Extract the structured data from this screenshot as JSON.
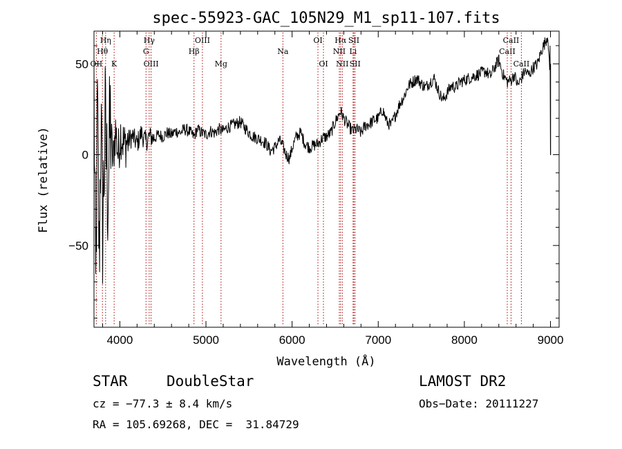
{
  "chart_data": {
    "type": "line",
    "title": "spec-55923-GAC_105N29_M1_sp11-107.fits",
    "xlabel": "Wavelength (Å)",
    "ylabel": "Flux (relative)",
    "xlim": [
      3700,
      9100
    ],
    "ylim": [
      -95,
      68
    ],
    "x_ticks": [
      4000,
      5000,
      6000,
      7000,
      8000,
      9000
    ],
    "y_ticks": [
      50,
      0,
      -50
    ],
    "x_tick_labels": [
      "4000",
      "5000",
      "6000",
      "7000",
      "8000",
      "9000"
    ],
    "y_tick_labels": [
      "50",
      "0",
      "−50"
    ],
    "grid": false,
    "line_color": "#000000",
    "marker_color": "#aa0000",
    "spectrum": {
      "x": [
        3700,
        3720,
        3740,
        3760,
        3780,
        3800,
        3830,
        3860,
        3890,
        3920,
        3950,
        3980,
        4010,
        4050,
        4100,
        4150,
        4200,
        4250,
        4300,
        4340,
        4400,
        4450,
        4500,
        4550,
        4600,
        4650,
        4700,
        4750,
        4800,
        4861,
        4900,
        4950,
        5000,
        5050,
        5100,
        5150,
        5200,
        5250,
        5300,
        5350,
        5400,
        5450,
        5500,
        5550,
        5600,
        5650,
        5700,
        5750,
        5800,
        5850,
        5890,
        5930,
        5970,
        6010,
        6050,
        6100,
        6150,
        6200,
        6250,
        6300,
        6350,
        6400,
        6450,
        6500,
        6563,
        6600,
        6650,
        6700,
        6750,
        6800,
        6850,
        6900,
        6950,
        7000,
        7050,
        7100,
        7150,
        7200,
        7250,
        7300,
        7350,
        7400,
        7450,
        7500,
        7550,
        7600,
        7650,
        7700,
        7750,
        7800,
        7850,
        7900,
        7950,
        8000,
        8050,
        8100,
        8150,
        8200,
        8250,
        8300,
        8350,
        8400,
        8450,
        8500,
        8542,
        8580,
        8620,
        8662,
        8700,
        8750,
        8800,
        8850,
        8900,
        8940,
        8970,
        8990,
        9000
      ],
      "y": [
        40,
        -80,
        25,
        -60,
        20,
        -40,
        15,
        -20,
        18,
        -5,
        14,
        0,
        12,
        5,
        8,
        10,
        6,
        12,
        7,
        10,
        9,
        11,
        10,
        12,
        11,
        13,
        12,
        14,
        13,
        10,
        14,
        12,
        11,
        13,
        12,
        14,
        13,
        15,
        16,
        17,
        18,
        15,
        12,
        10,
        9,
        8,
        6,
        2,
        4,
        8,
        5,
        0,
        -2,
        5,
        10,
        12,
        6,
        4,
        5,
        6,
        9,
        10,
        12,
        18,
        24,
        20,
        16,
        13,
        14,
        12,
        16,
        17,
        19,
        20,
        25,
        18,
        16,
        22,
        28,
        32,
        38,
        40,
        42,
        39,
        37,
        40,
        42,
        35,
        30,
        34,
        38,
        37,
        40,
        41,
        42,
        43,
        44,
        45,
        46,
        43,
        48,
        52,
        44,
        40,
        41,
        44,
        38,
        42,
        46,
        44,
        48,
        50,
        58,
        62,
        66,
        45,
        0
      ]
    },
    "line_markers": [
      {
        "wl": 3727,
        "label": "OII",
        "row": 3
      },
      {
        "wl": 3798,
        "label": "Hθ",
        "row": 2
      },
      {
        "wl": 3835,
        "label": "Hη",
        "row": 1
      },
      {
        "wl": 3934,
        "label": "K",
        "row": 3
      },
      {
        "wl": 4304,
        "label": "G",
        "row": 2
      },
      {
        "wl": 4341,
        "label": "Hγ",
        "row": 1
      },
      {
        "wl": 4363,
        "label": "OIII",
        "row": 3
      },
      {
        "wl": 4861,
        "label": "Hβ",
        "row": 2
      },
      {
        "wl": 4959,
        "label": "OIII",
        "row": 1
      },
      {
        "wl": 5175,
        "label": "Mg",
        "row": 3
      },
      {
        "wl": 5893,
        "label": "Na",
        "row": 2
      },
      {
        "wl": 6300,
        "label": "OI",
        "row": 1
      },
      {
        "wl": 6364,
        "label": "OI",
        "row": 3
      },
      {
        "wl": 6548,
        "label": "NII",
        "row": 2
      },
      {
        "wl": 6563,
        "label": "Hα",
        "row": 1
      },
      {
        "wl": 6583,
        "label": "NII",
        "row": 3
      },
      {
        "wl": 6708,
        "label": "Li",
        "row": 2
      },
      {
        "wl": 6717,
        "label": "SII",
        "row": 1
      },
      {
        "wl": 6731,
        "label": "SII",
        "row": 3
      },
      {
        "wl": 8498,
        "label": "CaII",
        "row": 2
      },
      {
        "wl": 8542,
        "label": "CaII",
        "row": 1
      },
      {
        "wl": 8662,
        "label": "CaII",
        "row": 3
      }
    ]
  },
  "info": {
    "class": "STAR",
    "subclass": "DoubleStar",
    "survey": "LAMOST DR2",
    "cz": "cz = −77.3 ± 8.4 km/s",
    "obs_date": "Obs−Date: 20111227",
    "coords": "RA = 105.69268, DEC =  31.84729"
  }
}
